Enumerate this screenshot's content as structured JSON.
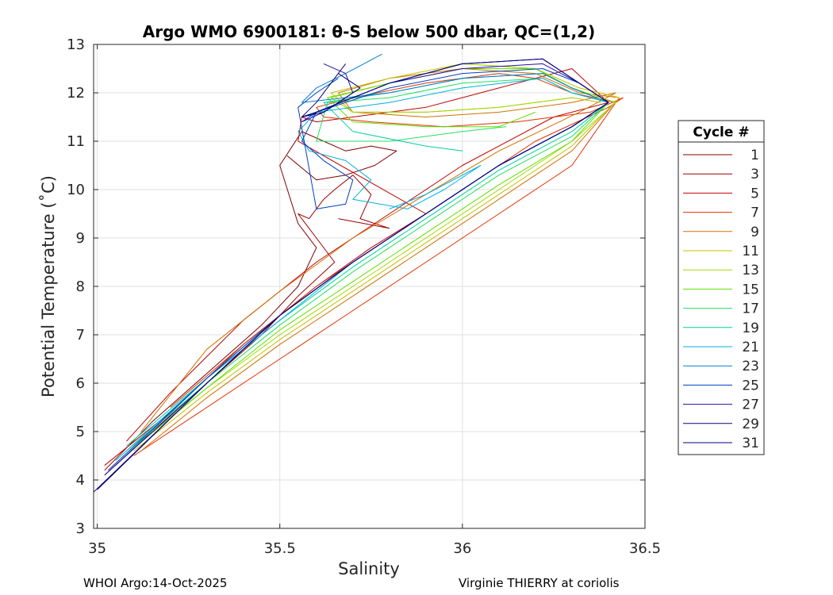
{
  "chart_data": {
    "type": "line",
    "title": "Argo WMO 6900181: θ-S below 500 dbar,  QC=(1,2)",
    "xlabel": "Salinity",
    "ylabel": "Potential Temperature (˚C)",
    "xlim": [
      34.99,
      36.5
    ],
    "ylim": [
      3,
      13
    ],
    "x_ticks": [
      "35",
      "35.5",
      "36",
      "36.5"
    ],
    "x_tick_values": [
      35,
      35.5,
      36,
      36.5
    ],
    "y_ticks": [
      "3",
      "4",
      "5",
      "6",
      "7",
      "8",
      "9",
      "10",
      "11",
      "12",
      "13"
    ],
    "y_tick_values": [
      3,
      4,
      5,
      6,
      7,
      8,
      9,
      10,
      11,
      12,
      13
    ],
    "grid": true,
    "legend_title": "Cycle #",
    "legend_position": "right",
    "series": [
      {
        "name": "1",
        "color": "#800000",
        "x": [
          35.02,
          35.15,
          35.3,
          35.45,
          35.55,
          35.6,
          35.55,
          35.5,
          35.56,
          35.62,
          35.68,
          35.75,
          35.82,
          35.76,
          35.68,
          35.6,
          35.52
        ],
        "y": [
          4.2,
          5.2,
          6.2,
          7.2,
          8.0,
          8.8,
          9.3,
          10.5,
          11.2,
          11.0,
          10.8,
          10.9,
          10.8,
          10.5,
          10.3,
          10.2,
          10.7
        ]
      },
      {
        "name": "3",
        "color": "#9f0000",
        "x": [
          35.02,
          35.15,
          35.3,
          35.45,
          35.55,
          35.65,
          35.6,
          35.55,
          35.58,
          35.62,
          35.65,
          35.7,
          35.75,
          35.72,
          35.8,
          35.66
        ],
        "y": [
          4.1,
          5.0,
          6.0,
          7.0,
          7.8,
          8.5,
          9.0,
          9.5,
          9.4,
          9.8,
          10.0,
          10.3,
          9.9,
          9.4,
          9.2,
          9.4
        ]
      },
      {
        "name": "5",
        "color": "#c00000",
        "x": [
          35.02,
          35.2,
          35.4,
          35.6,
          35.75,
          35.9,
          35.55,
          35.56,
          35.6,
          35.7,
          35.9,
          36.1,
          36.3,
          36.4,
          36.25,
          36.0,
          35.8,
          35.6,
          35.4,
          35.2,
          35.08
        ],
        "y": [
          4.3,
          5.4,
          6.8,
          8.0,
          8.8,
          9.5,
          11.0,
          11.5,
          11.4,
          11.5,
          11.7,
          12.1,
          12.5,
          11.8,
          11.5,
          10.5,
          9.5,
          8.5,
          7.3,
          5.8,
          4.8
        ]
      },
      {
        "name": "7",
        "color": "#e03000",
        "x": [
          35.1,
          35.3,
          35.5,
          35.7,
          35.9,
          36.1,
          36.3,
          36.42,
          36.3,
          36.2,
          36.1,
          35.9,
          35.7,
          35.6,
          35.62,
          35.75,
          35.95,
          36.15,
          36.35,
          36.44,
          36.4,
          36.2,
          36.0,
          35.8,
          35.6,
          35.4,
          35.2
        ],
        "y": [
          4.5,
          5.5,
          6.5,
          7.5,
          8.5,
          9.5,
          10.5,
          11.8,
          12.0,
          12.3,
          12.4,
          12.2,
          11.9,
          11.7,
          11.5,
          11.4,
          11.3,
          11.4,
          11.6,
          11.9,
          11.7,
          11.0,
          10.0,
          9.0,
          8.0,
          6.8,
          5.5
        ]
      },
      {
        "name": "9",
        "color": "#d07000",
        "x": [
          35.12,
          35.3,
          35.5,
          35.7,
          35.9,
          36.1,
          36.3,
          36.43,
          36.32,
          36.2,
          36.0,
          35.8,
          35.66,
          35.7,
          35.9,
          36.1,
          36.3,
          36.42,
          36.32,
          36.1,
          35.9,
          35.7,
          35.5,
          35.3,
          35.12
        ],
        "y": [
          4.6,
          5.7,
          6.8,
          7.8,
          8.8,
          9.8,
          10.8,
          11.9,
          12.0,
          12.4,
          12.5,
          12.3,
          12.0,
          11.6,
          11.5,
          11.6,
          11.8,
          12.0,
          11.6,
          10.8,
          9.9,
          9.0,
          7.9,
          6.7,
          5.0
        ]
      },
      {
        "name": "11",
        "color": "#c0c000",
        "x": [
          35.1,
          35.3,
          35.5,
          35.7,
          35.9,
          36.1,
          36.3,
          36.43,
          36.32,
          36.2,
          36.0,
          35.8,
          35.64,
          35.7,
          35.9,
          36.1,
          36.3,
          36.38
        ],
        "y": [
          4.6,
          5.8,
          6.9,
          7.9,
          8.9,
          9.9,
          10.9,
          11.9,
          12.1,
          12.5,
          12.6,
          12.3,
          12.0,
          11.6,
          11.6,
          11.7,
          11.9,
          11.8
        ]
      },
      {
        "name": "13",
        "color": "#a0d800",
        "x": [
          35.1,
          35.3,
          35.5,
          35.7,
          35.9,
          36.1,
          36.3,
          36.42,
          36.3,
          36.2,
          36.0,
          35.8,
          35.64,
          35.7,
          35.9,
          36.1,
          36.3
        ],
        "y": [
          4.7,
          5.9,
          7.0,
          8.0,
          9.0,
          10.0,
          11.0,
          11.8,
          12.1,
          12.5,
          12.6,
          12.2,
          11.9,
          11.6,
          11.6,
          11.7,
          11.9
        ]
      },
      {
        "name": "15",
        "color": "#60e000",
        "x": [
          35.09,
          35.3,
          35.5,
          35.7,
          35.9,
          36.1,
          36.3,
          36.4,
          36.3,
          36.2,
          36.0,
          35.8,
          35.63,
          35.7,
          35.9,
          36.1,
          36.2
        ],
        "y": [
          4.6,
          5.9,
          7.1,
          8.1,
          9.1,
          10.1,
          11.0,
          11.8,
          12.1,
          12.5,
          12.5,
          12.2,
          11.9,
          11.4,
          11.3,
          11.3,
          11.6
        ]
      },
      {
        "name": "17",
        "color": "#20e060",
        "x": [
          35.08,
          35.3,
          35.5,
          35.7,
          35.9,
          36.1,
          36.3,
          36.4,
          36.3,
          36.22,
          36.0,
          35.8,
          35.63,
          35.6,
          35.8,
          36.0,
          36.12
        ],
        "y": [
          4.6,
          6.0,
          7.2,
          8.3,
          9.3,
          10.3,
          11.1,
          11.8,
          12.0,
          12.3,
          12.2,
          11.9,
          11.8,
          11.0,
          11.0,
          11.2,
          11.3
        ]
      },
      {
        "name": "19",
        "color": "#00d0a0",
        "x": [
          35.08,
          35.3,
          35.5,
          35.7,
          35.9,
          36.1,
          36.3,
          36.4,
          36.3,
          36.22,
          36.0,
          35.8,
          35.62,
          35.7,
          35.9,
          36.0
        ],
        "y": [
          4.7,
          6.1,
          7.3,
          8.4,
          9.4,
          10.4,
          11.2,
          11.8,
          12.1,
          12.4,
          12.3,
          12.0,
          11.8,
          11.2,
          10.9,
          10.8
        ]
      },
      {
        "name": "21",
        "color": "#00b0e0",
        "x": [
          35.05,
          35.3,
          35.5,
          35.7,
          35.9,
          36.1,
          36.3,
          36.4,
          36.3,
          36.22,
          36.0,
          35.8,
          35.6,
          35.55,
          35.58,
          35.68,
          35.75,
          35.7,
          35.85,
          35.95,
          36.05,
          35.9,
          35.8
        ],
        "y": [
          4.4,
          6.1,
          7.3,
          8.5,
          9.5,
          10.5,
          11.3,
          11.8,
          12.0,
          12.3,
          12.1,
          11.8,
          11.6,
          11.2,
          10.8,
          10.6,
          10.2,
          9.8,
          9.6,
          10.0,
          10.5,
          9.9,
          9.6
        ]
      },
      {
        "name": "23",
        "color": "#0080d0",
        "x": [
          35.05,
          35.3,
          35.5,
          35.7,
          35.9,
          36.1,
          36.3,
          36.4,
          36.3,
          36.22,
          36.0,
          35.8,
          35.56,
          35.6,
          35.68,
          35.73,
          35.78
        ],
        "y": [
          4.3,
          6.1,
          7.4,
          8.5,
          9.5,
          10.5,
          11.3,
          11.8,
          12.1,
          12.4,
          12.3,
          12.0,
          11.8,
          12.1,
          12.4,
          12.6,
          12.8
        ]
      },
      {
        "name": "25",
        "color": "#0040c0",
        "x": [
          35.03,
          35.3,
          35.5,
          35.7,
          35.9,
          36.1,
          36.3,
          36.4,
          36.32,
          36.22,
          36.0,
          35.8,
          35.6,
          35.56,
          35.62,
          35.7,
          35.68,
          35.6,
          35.55,
          35.6,
          35.66
        ],
        "y": [
          4.2,
          6.1,
          7.4,
          8.5,
          9.5,
          10.5,
          11.3,
          11.8,
          12.2,
          12.5,
          12.4,
          12.1,
          11.6,
          11.0,
          10.6,
          10.2,
          9.7,
          9.6,
          11.7,
          12.0,
          12.3
        ]
      },
      {
        "name": "27",
        "color": "#2010a0",
        "x": [
          35.02,
          35.3,
          35.5,
          35.7,
          35.9,
          36.1,
          36.3,
          36.4,
          36.32,
          36.22,
          36.0,
          35.8,
          35.6,
          35.56,
          35.62,
          35.7,
          35.68,
          35.62
        ],
        "y": [
          4.1,
          6.0,
          7.4,
          8.5,
          9.5,
          10.5,
          11.3,
          11.8,
          12.2,
          12.6,
          12.5,
          12.2,
          11.6,
          11.4,
          11.6,
          12.0,
          12.4,
          12.6
        ]
      },
      {
        "name": "29",
        "color": "#100070",
        "x": [
          35.0,
          35.3,
          35.5,
          35.7,
          35.9,
          36.1,
          36.3,
          36.4,
          36.32,
          36.22,
          36.0,
          35.8,
          35.6,
          35.56,
          35.6,
          35.68
        ],
        "y": [
          3.8,
          6.0,
          7.4,
          8.5,
          9.5,
          10.5,
          11.3,
          11.8,
          12.2,
          12.7,
          12.6,
          12.2,
          11.6,
          11.5,
          11.8,
          12.6
        ]
      },
      {
        "name": "31",
        "color": "#000080",
        "x": [
          34.99,
          35.3,
          35.5,
          35.7,
          35.9,
          36.1,
          36.3,
          36.4,
          36.32,
          36.22,
          36.0,
          35.8,
          35.6,
          35.56,
          35.62,
          35.72,
          35.66
        ],
        "y": [
          3.75,
          6.0,
          7.4,
          8.5,
          9.5,
          10.5,
          11.3,
          11.8,
          12.2,
          12.7,
          12.6,
          12.2,
          11.6,
          11.5,
          11.6,
          12.1,
          12.4
        ]
      }
    ]
  },
  "footer": {
    "left": "WHOI Argo:14-Oct-2025",
    "right": "Virginie THIERRY at coriolis"
  }
}
